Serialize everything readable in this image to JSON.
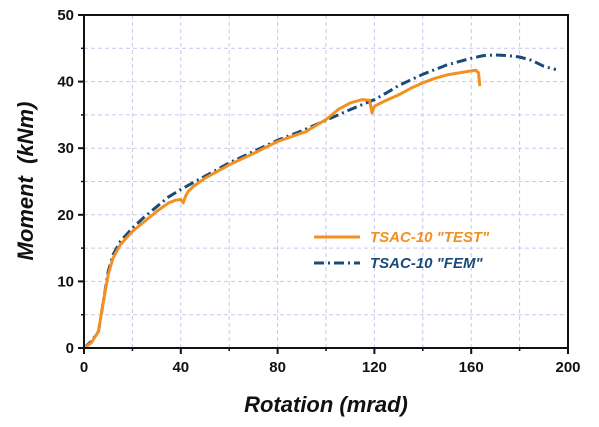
{
  "chart_data": {
    "type": "line",
    "xlabel": "Rotation (mrad)",
    "ylabel": "Moment  (kNm)",
    "xlim": [
      0,
      200
    ],
    "ylim": [
      0,
      50
    ],
    "xticks": [
      0,
      40,
      80,
      120,
      160,
      200
    ],
    "yticks": [
      0,
      10,
      20,
      30,
      40,
      50
    ],
    "x_tick_labels": [
      "0",
      "40",
      "80",
      "120",
      "160",
      "200"
    ],
    "y_tick_labels": [
      "0",
      "10",
      "20",
      "30",
      "40",
      "50"
    ],
    "grid": true,
    "legend_position": "center-right",
    "series": [
      {
        "name": "TSAC-10 \"TEST\"",
        "color": "#f39022",
        "style": "solid",
        "x": [
          0,
          3,
          6,
          8,
          10,
          12,
          15,
          20,
          25,
          30,
          35,
          38,
          40,
          41,
          42,
          43,
          45,
          50,
          60,
          70,
          80,
          90,
          92,
          93,
          100,
          105,
          110,
          115,
          118,
          119,
          120,
          125,
          130,
          135,
          140,
          145,
          150,
          155,
          160,
          162,
          163,
          163.5
        ],
        "y": [
          0,
          0.8,
          2.5,
          7,
          11,
          13.5,
          15.5,
          17.5,
          19,
          20.5,
          21.8,
          22.2,
          22.3,
          21.8,
          22.8,
          23.5,
          24.2,
          25.5,
          27.5,
          29.2,
          31,
          32.3,
          32.5,
          32.8,
          34.3,
          35.8,
          36.8,
          37.3,
          37.2,
          35.3,
          36.3,
          37.2,
          38,
          39,
          39.8,
          40.5,
          41,
          41.3,
          41.6,
          41.7,
          41.3,
          39.5
        ]
      },
      {
        "name": "TSAC-10 \"FEM\"",
        "color": "#1a4a7a",
        "style": "dashdot",
        "x": [
          0,
          3,
          6,
          8,
          10,
          12,
          15,
          20,
          25,
          30,
          35,
          40,
          45,
          50,
          60,
          70,
          80,
          90,
          100,
          110,
          120,
          125,
          130,
          140,
          150,
          160,
          165,
          170,
          175,
          180,
          185,
          190,
          195
        ],
        "y": [
          0,
          1,
          2.5,
          7,
          11.5,
          14,
          16,
          18,
          19.7,
          21.2,
          22.7,
          23.8,
          24.8,
          25.8,
          27.8,
          29.5,
          31.2,
          32.6,
          34.2,
          35.8,
          37.3,
          38.3,
          39.4,
          41.1,
          42.5,
          43.5,
          43.9,
          44,
          43.9,
          43.7,
          43.2,
          42.3,
          41.8
        ]
      }
    ]
  }
}
